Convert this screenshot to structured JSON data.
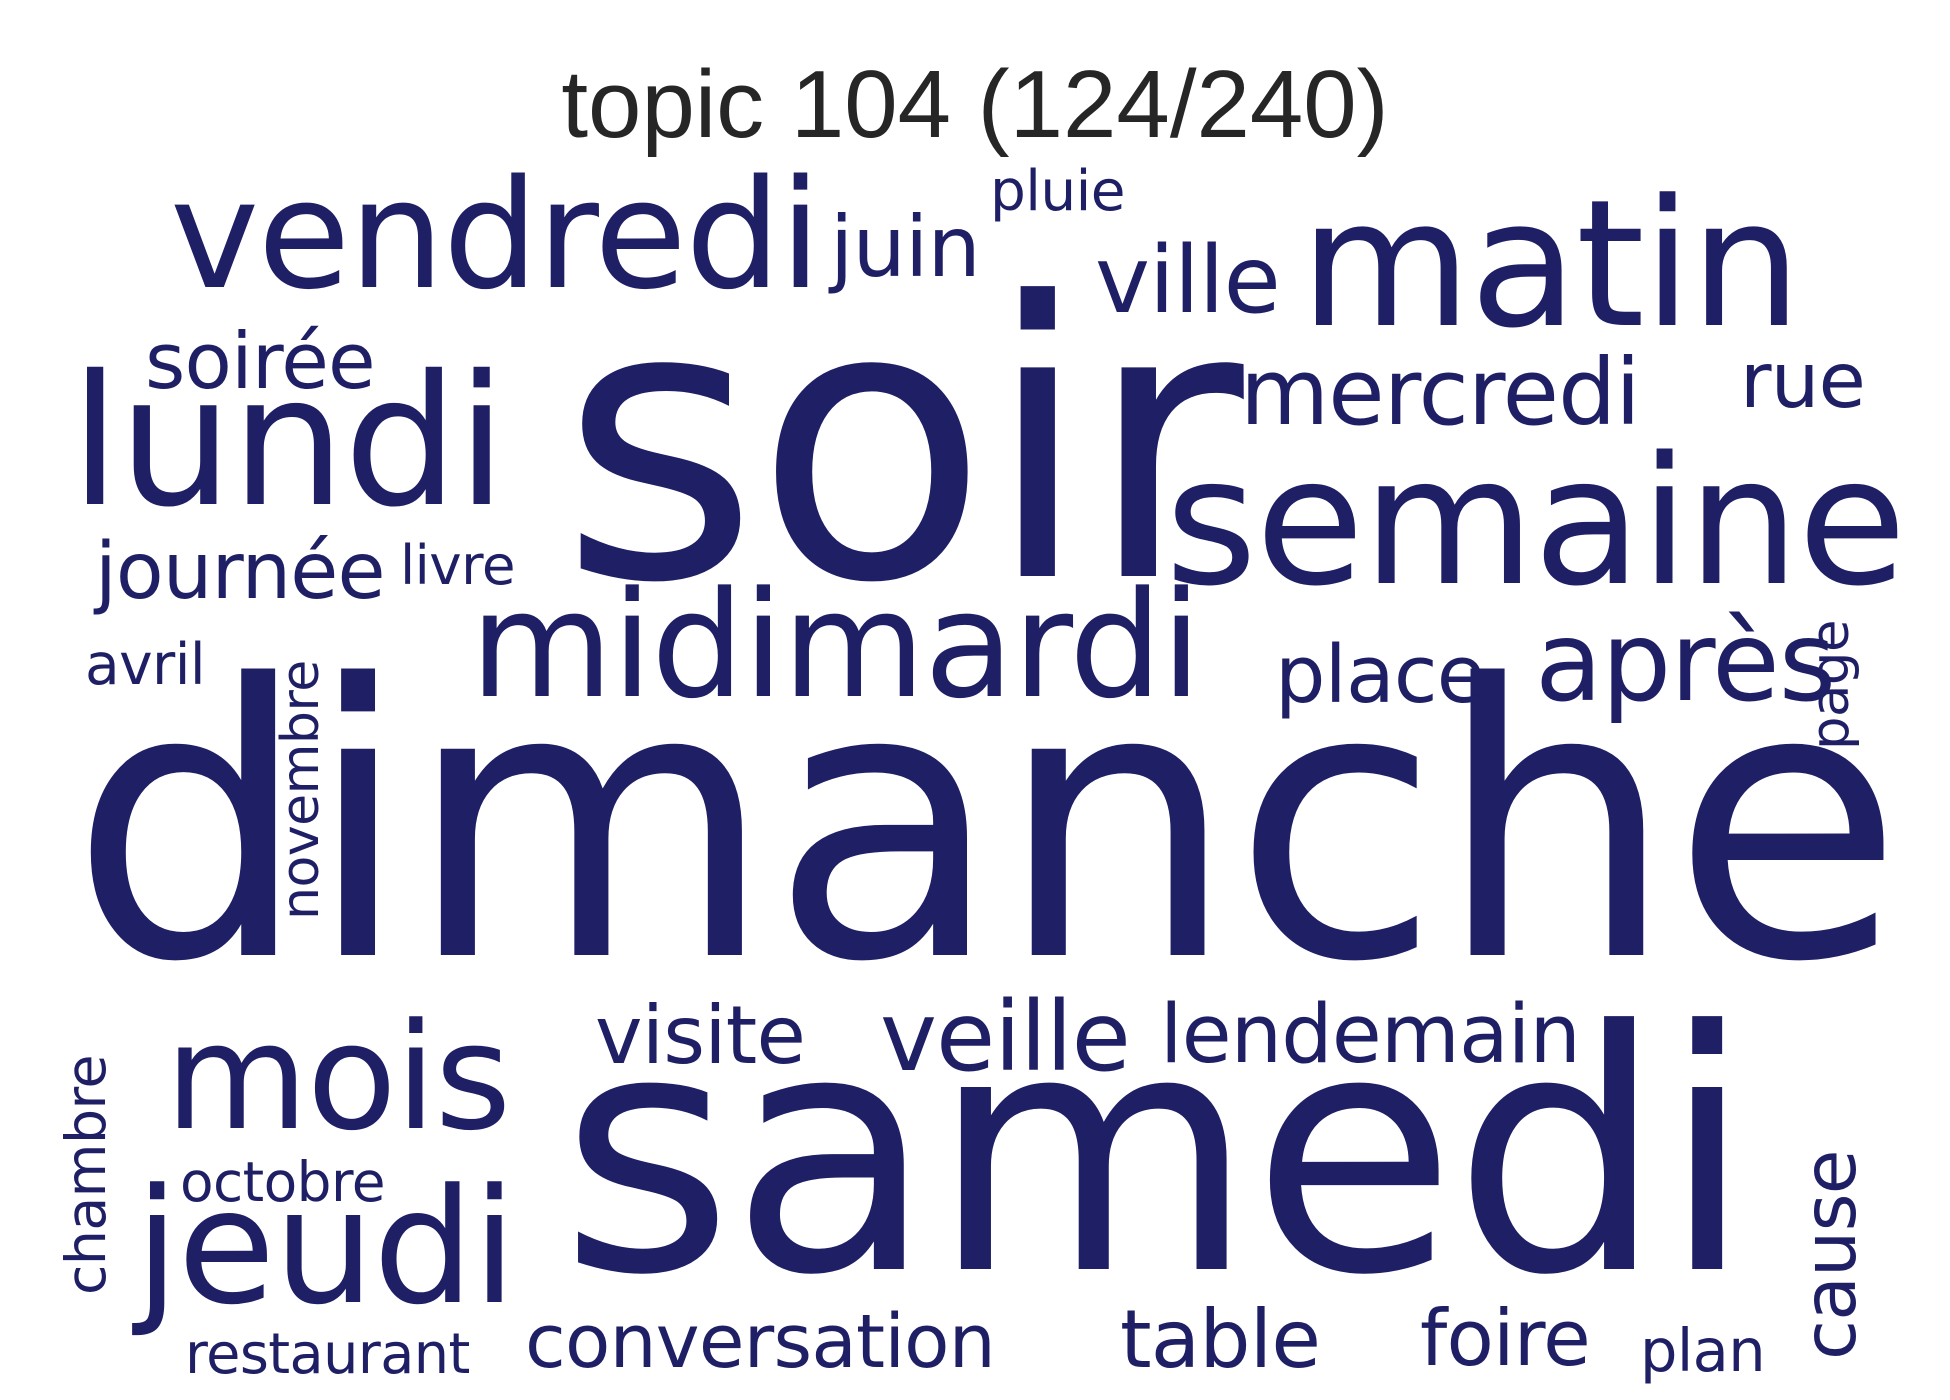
{
  "title": "topic 104 (124/240)",
  "word_color": "#1f1f66",
  "words": [
    {
      "text": "dimanche"
    },
    {
      "text": "samedi"
    },
    {
      "text": "soir"
    },
    {
      "text": "semaine"
    },
    {
      "text": "matin"
    },
    {
      "text": "lundi"
    },
    {
      "text": "vendredi"
    },
    {
      "text": "midimardi"
    },
    {
      "text": "mois"
    },
    {
      "text": "jeudi"
    },
    {
      "text": "mercredi"
    },
    {
      "text": "après"
    },
    {
      "text": "lendemain"
    },
    {
      "text": "ville"
    },
    {
      "text": "place"
    },
    {
      "text": "veille"
    },
    {
      "text": "visite"
    },
    {
      "text": "conversation"
    },
    {
      "text": "table"
    },
    {
      "text": "foire"
    },
    {
      "text": "journée"
    },
    {
      "text": "soirée"
    },
    {
      "text": "juin"
    },
    {
      "text": "rue"
    },
    {
      "text": "pluie"
    },
    {
      "text": "livre"
    },
    {
      "text": "avril"
    },
    {
      "text": "octobre"
    },
    {
      "text": "restaurant"
    },
    {
      "text": "plan"
    },
    {
      "text": "novembre"
    },
    {
      "text": "chambre"
    },
    {
      "text": "cause"
    },
    {
      "text": "page"
    }
  ]
}
